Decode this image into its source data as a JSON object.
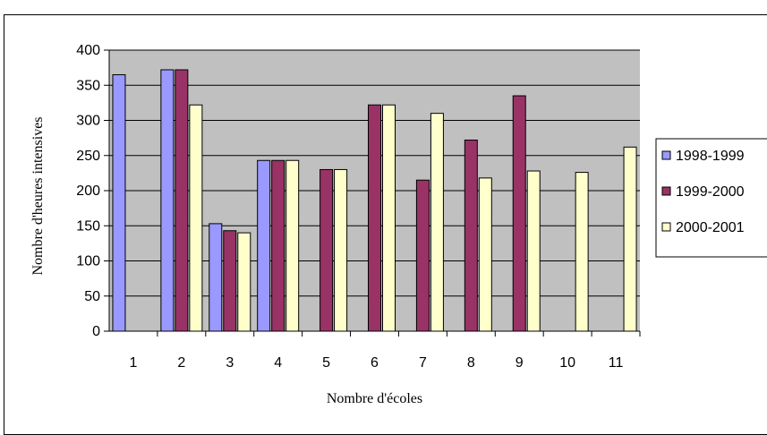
{
  "chart_data": {
    "type": "bar",
    "xlabel": "Nombre d'écoles",
    "ylabel": "Nombre d'heures intensives",
    "ylim": [
      0,
      400
    ],
    "yticks": [
      0,
      50,
      100,
      150,
      200,
      250,
      300,
      350,
      400
    ],
    "categories": [
      "1",
      "2",
      "3",
      "4",
      "5",
      "6",
      "7",
      "8",
      "9",
      "10",
      "11"
    ],
    "grid": "horizontal",
    "legend_position": "right",
    "plot_background": "#c0c0c0",
    "series": [
      {
        "name": "1998-1999",
        "color": "#9999ff",
        "values": [
          365,
          372,
          153,
          243,
          null,
          null,
          null,
          null,
          null,
          null,
          null
        ]
      },
      {
        "name": "1999-2000",
        "color": "#993366",
        "values": [
          null,
          372,
          143,
          243,
          230,
          322,
          215,
          272,
          335,
          null,
          null
        ]
      },
      {
        "name": "2000-2001",
        "color": "#ffffcc",
        "values": [
          null,
          322,
          140,
          243,
          230,
          322,
          310,
          218,
          228,
          226,
          262
        ]
      }
    ]
  }
}
